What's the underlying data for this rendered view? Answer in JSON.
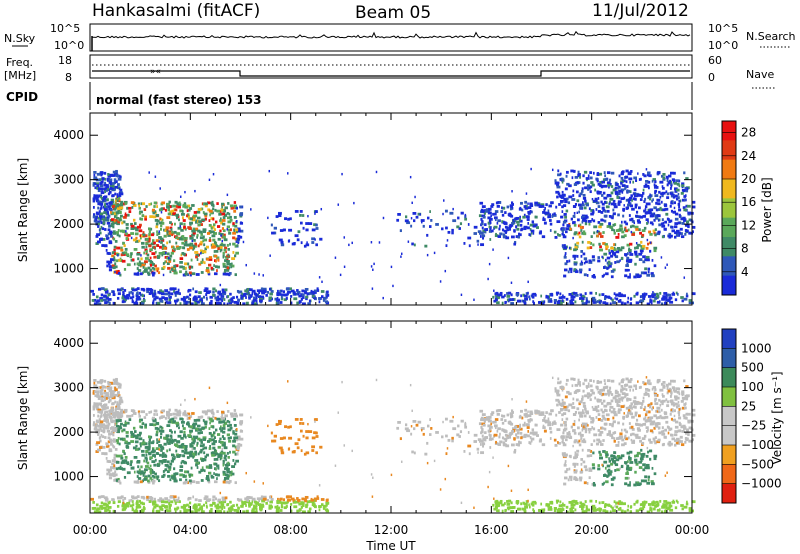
{
  "header": {
    "station": "Hankasalmi (fitACF)",
    "beam": "Beam 05",
    "date": "11/Jul/2012"
  },
  "status_panels": {
    "nsky_label": "N.Sky",
    "nsearch_label": "N.Search",
    "noise_ticks": [
      "10^5",
      "10^0"
    ],
    "freq_label_1": "Freq.",
    "freq_label_2": "[MHz]",
    "freq_ticks": [
      "18",
      "8"
    ],
    "nave_label": "Nave",
    "nave_ticks": [
      "60",
      "0"
    ],
    "cpid_label": "CPID",
    "cpid_text": "normal (fast stereo) 153"
  },
  "colors": {
    "power": [
      "#1a2bd8",
      "#2f58b8",
      "#3f8a66",
      "#5aa85a",
      "#9cc63c",
      "#f0b81e",
      "#f07a12",
      "#e03a14",
      "#e81010"
    ],
    "velocity_ground": "#bdbdbd",
    "velocity_neg": "#e88820",
    "velocity_pos": "#3f8a66",
    "velocity_ionos_low": "#88d040",
    "velocity_scale": [
      "#2040c0",
      "#2e5ea8",
      "#3c8a5a",
      "#80c040",
      "#c8c8c8",
      "#c8c8c8",
      "#f0a020",
      "#f06818",
      "#e02010"
    ]
  },
  "chart_data": [
    {
      "type": "heatmap",
      "title": "Power",
      "xlabel": "Time UT",
      "ylabel": "Slant Range [km]",
      "x_ticks": [
        "00:00",
        "04:00",
        "08:00",
        "12:00",
        "16:00",
        "20:00",
        "00:00"
      ],
      "xlim_hours": [
        0,
        24
      ],
      "ylim_km": [
        180,
        4500
      ],
      "y_ticks": [
        1000,
        2000,
        3000,
        4000
      ],
      "colorbar": {
        "label": "Power [dB]",
        "ticks": [
          4,
          8,
          12,
          16,
          20,
          24,
          28
        ],
        "range": [
          0,
          30
        ]
      }
    },
    {
      "type": "heatmap",
      "title": "Velocity",
      "xlabel": "Time UT",
      "ylabel": "Slant Range [km]",
      "x_ticks": [
        "00:00",
        "04:00",
        "08:00",
        "12:00",
        "16:00",
        "20:00",
        "00:00"
      ],
      "xlim_hours": [
        0,
        24
      ],
      "ylim_km": [
        180,
        4500
      ],
      "y_ticks": [
        1000,
        2000,
        3000,
        4000
      ],
      "colorbar": {
        "label": "Velocity [m s⁻¹]",
        "ticks": [
          "1000",
          "500",
          "100",
          "25",
          "−25",
          "−100",
          "−500",
          "−1000"
        ]
      }
    }
  ]
}
